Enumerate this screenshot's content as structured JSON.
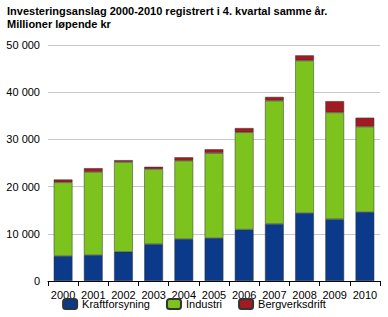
{
  "chart_data": {
    "type": "bar",
    "title": "Investeringsanslag 2000-2010 registrert i 4. kvartal samme år.",
    "subtitle": "Millioner løpende kr",
    "categories": [
      "2000",
      "2001",
      "2002",
      "2003",
      "2004",
      "2005",
      "2006",
      "2007",
      "2008",
      "2009",
      "2010"
    ],
    "series": [
      {
        "name": "Kraftforsyning",
        "color": "#0b3a8a",
        "values": [
          5300,
          5500,
          6200,
          7800,
          8900,
          9100,
          10900,
          12100,
          14400,
          13100,
          14600
        ]
      },
      {
        "name": "Industri",
        "color": "#7dc31d",
        "values": [
          15600,
          17600,
          19000,
          15900,
          16600,
          18000,
          20600,
          26100,
          32300,
          22600,
          18100
        ]
      },
      {
        "name": "Bergverksdrift",
        "color": "#a01c22",
        "values": [
          600,
          800,
          400,
          500,
          700,
          800,
          900,
          800,
          1100,
          2400,
          1900
        ]
      }
    ],
    "ylim": [
      0,
      50000
    ],
    "yticks": [
      0,
      {
        "value": 10000,
        "label": "10 000"
      },
      {
        "value": 20000,
        "label": "20 000"
      },
      {
        "value": 30000,
        "label": "30 000"
      },
      {
        "value": 40000,
        "label": "40 000"
      },
      {
        "value": 50000,
        "label": "50 000"
      }
    ],
    "stacked": true,
    "grid": true,
    "legend": "bottom"
  }
}
